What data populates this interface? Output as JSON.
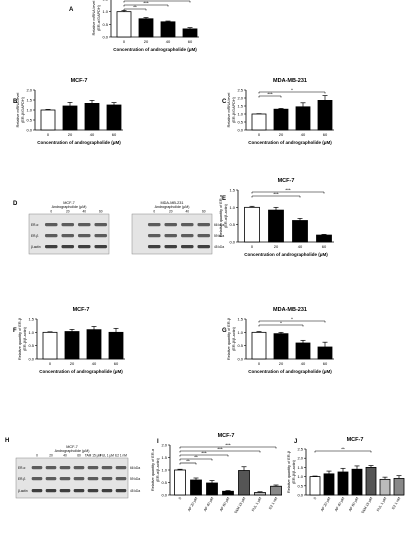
{
  "figure": {
    "panels": [
      {
        "id": "A",
        "letter": "A",
        "title": "MCF-7",
        "ylabel": "Relative mRNA level\n(ER-α/GAPDH)",
        "xlabel": "Concentration of andrographolide (μM)"
      },
      {
        "id": "B",
        "letter": "B",
        "title": "MCF-7",
        "ylabel": "Relative mRNA level\n(ER-β/GAPDH)",
        "xlabel": "Concentration of andrographolide (μM)"
      },
      {
        "id": "C",
        "letter": "C",
        "title": "MDA-MB-231",
        "ylabel": "Relative mRNA level\n(ER-β/GAPDH)",
        "xlabel": "Concentration of andrographolide (μM)"
      },
      {
        "id": "E",
        "letter": "E",
        "title": "MCF-7",
        "ylabel": "Relative quantity of ER-α\n(ER-α/β-actin)",
        "xlabel": "Concentration of andrographolide (μM)"
      },
      {
        "id": "F",
        "letter": "F",
        "title": "MCF-7",
        "ylabel": "Relative quantity of ER-β\n(ER-β/β-actin)",
        "xlabel": "Concentration of andrographolide (μM)"
      },
      {
        "id": "G",
        "letter": "G",
        "title": "MDA-MB-231",
        "ylabel": "Relative quantity of ER-β\n(ER-β/β-actin)",
        "xlabel": "Concentration of andrographolide (μM)"
      },
      {
        "id": "I",
        "letter": "I",
        "title": "MCF-7",
        "ylabel": "Relative quantity of ER-α\n(ER-α/β-actin)",
        "xlabel": ""
      },
      {
        "id": "J",
        "letter": "J",
        "title": "MCF-7",
        "ylabel": "Relative quantity of ER-β\n(ER-β/β-actin)",
        "xlabel": ""
      }
    ],
    "blots": [
      {
        "id": "D",
        "letter": "D",
        "groups": [
          {
            "title": "MCF-7",
            "subtitle": "Andrographolide (μM)",
            "lanes": [
              "0",
              "20",
              "40",
              "60"
            ]
          },
          {
            "title": "MDA-MB-231",
            "subtitle": "Andrographolide (μM)",
            "lanes": [
              "0",
              "20",
              "40",
              "60"
            ]
          }
        ],
        "rows": [
          "ER-α",
          "ER-β",
          "β-actin"
        ],
        "sizes": [
          "66 kDa",
          "59 kDa",
          "45 kDa"
        ]
      },
      {
        "id": "H",
        "letter": "H",
        "groups": [
          {
            "title": "MCF-7",
            "subtitle": "Andrographolide (μM)",
            "lanes": [
              "0",
              "20",
              "40",
              "60",
              "TAM 15 μM",
              "FUL 1 μM",
              "E2 1 nM"
            ]
          }
        ],
        "rows": [
          "ER-α",
          "ER-β",
          "β-actin"
        ],
        "sizes": [
          "66 kDa",
          "59 kDa",
          "45 kDa"
        ]
      }
    ]
  },
  "chart_data": [
    {
      "id": "A",
      "type": "bar",
      "categories": [
        "0",
        "20",
        "40",
        "60"
      ],
      "values": [
        1.0,
        0.72,
        0.6,
        0.32
      ],
      "errors": [
        0.04,
        0.05,
        0.03,
        0.05
      ],
      "ylim": [
        0,
        1.5
      ],
      "yticks": [
        "0.0",
        "0.5",
        "1.0",
        "1.5"
      ],
      "sig": [
        {
          "from": 0,
          "to": 1,
          "label": "**"
        },
        {
          "from": 0,
          "to": 2,
          "label": "***"
        },
        {
          "from": 0,
          "to": 3,
          "label": "***"
        }
      ]
    },
    {
      "id": "B",
      "type": "bar",
      "categories": [
        "0",
        "20",
        "40",
        "60"
      ],
      "values": [
        1.0,
        1.2,
        1.33,
        1.25
      ],
      "errors": [
        0.03,
        0.18,
        0.15,
        0.12
      ],
      "ylim": [
        0,
        2.0
      ],
      "yticks": [
        "0.0",
        "0.5",
        "1.0",
        "1.5",
        "2.0"
      ],
      "sig": []
    },
    {
      "id": "C",
      "type": "bar",
      "categories": [
        "0",
        "20",
        "40",
        "60"
      ],
      "values": [
        1.0,
        1.3,
        1.45,
        1.85
      ],
      "errors": [
        0.02,
        0.05,
        0.25,
        0.3
      ],
      "ylim": [
        0,
        2.5
      ],
      "yticks": [
        "0.0",
        "0.5",
        "1.0",
        "1.5",
        "2.0",
        "2.5"
      ],
      "sig": [
        {
          "from": 0,
          "to": 1,
          "label": "***"
        },
        {
          "from": 0,
          "to": 3,
          "label": "*"
        }
      ]
    },
    {
      "id": "E",
      "type": "bar",
      "categories": [
        "0",
        "20",
        "40",
        "60"
      ],
      "values": [
        1.0,
        0.92,
        0.62,
        0.2
      ],
      "errors": [
        0.03,
        0.08,
        0.06,
        0.02
      ],
      "ylim": [
        0,
        1.5
      ],
      "yticks": [
        "0.0",
        "0.5",
        "1.0",
        "1.5"
      ],
      "sig": [
        {
          "from": 0,
          "to": 2,
          "label": "***"
        },
        {
          "from": 0,
          "to": 3,
          "label": "***"
        }
      ]
    },
    {
      "id": "F",
      "type": "bar",
      "categories": [
        "0",
        "20",
        "40",
        "60"
      ],
      "values": [
        1.0,
        1.03,
        1.1,
        1.0
      ],
      "errors": [
        0.02,
        0.08,
        0.12,
        0.15
      ],
      "ylim": [
        0,
        1.5
      ],
      "yticks": [
        "0.0",
        "0.5",
        "1.0",
        "1.5"
      ],
      "sig": []
    },
    {
      "id": "G",
      "type": "bar",
      "categories": [
        "0",
        "20",
        "40",
        "60"
      ],
      "values": [
        1.0,
        0.95,
        0.6,
        0.45
      ],
      "errors": [
        0.03,
        0.05,
        0.1,
        0.18
      ],
      "ylim": [
        0,
        1.5
      ],
      "yticks": [
        "0.0",
        "0.5",
        "1.0",
        "1.5"
      ],
      "sig": [
        {
          "from": 0,
          "to": 2,
          "label": "*"
        },
        {
          "from": 0,
          "to": 3,
          "label": "*"
        }
      ]
    },
    {
      "id": "I",
      "type": "bar",
      "categories": [
        "0",
        "AP 20 μM",
        "AP 40 μM",
        "AP 60 μM",
        "TAM 15 μM",
        "FUL 1 μM",
        "E2 1 nM"
      ],
      "values": [
        1.0,
        0.6,
        0.48,
        0.15,
        0.98,
        0.1,
        0.35
      ],
      "errors": [
        0.03,
        0.08,
        0.1,
        0.03,
        0.15,
        0.03,
        0.05
      ],
      "ylim": [
        0,
        2.0
      ],
      "yticks": [
        "0.0",
        "0.5",
        "1.0",
        "1.5",
        "2.0"
      ],
      "colors": [
        "#ffffff",
        "#000000",
        "#000000",
        "#000000",
        "#555555",
        "#bbbbbb",
        "#888888"
      ],
      "sig": [
        {
          "from": 0,
          "to": 1,
          "label": "**"
        },
        {
          "from": 0,
          "to": 2,
          "label": "**"
        },
        {
          "from": 0,
          "to": 3,
          "label": "***"
        },
        {
          "from": 0,
          "to": 5,
          "label": "***"
        },
        {
          "from": 0,
          "to": 6,
          "label": "***"
        }
      ]
    },
    {
      "id": "J",
      "type": "bar",
      "categories": [
        "0",
        "AP 20 μM",
        "AP 40 μM",
        "AP 60 μM",
        "TAM 15 μM",
        "FUL 1 μM",
        "E2 1 nM"
      ],
      "values": [
        1.0,
        1.15,
        1.25,
        1.4,
        1.5,
        0.85,
        0.9
      ],
      "errors": [
        0.03,
        0.15,
        0.2,
        0.18,
        0.1,
        0.12,
        0.15
      ],
      "ylim": [
        0,
        2.5
      ],
      "yticks": [
        "0.0",
        "0.5",
        "1.0",
        "1.5",
        "2.0",
        "2.5"
      ],
      "colors": [
        "#ffffff",
        "#000000",
        "#000000",
        "#000000",
        "#555555",
        "#bbbbbb",
        "#888888"
      ],
      "sig": [
        {
          "from": 0,
          "to": 4,
          "label": "**"
        }
      ]
    }
  ]
}
